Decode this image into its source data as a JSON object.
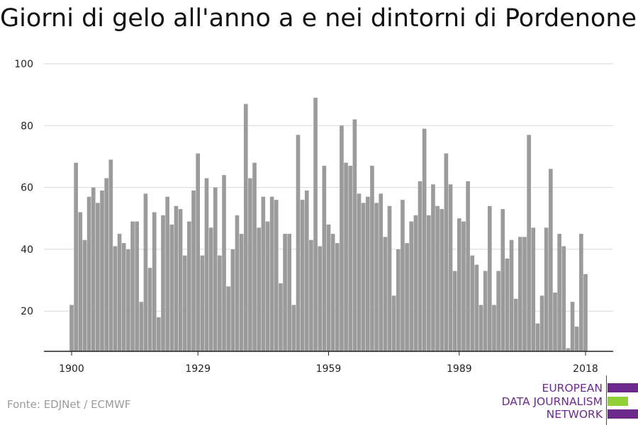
{
  "title": "Giorni di gelo all'anno a e nei dintorni di Pordenone",
  "source": "Fonte: EDJNet / ECMWF",
  "logo": {
    "line1": "EUROPEAN",
    "line2": "DATA JOURNALISM",
    "line3": "NETWORK",
    "colors": {
      "purple": "#6b2a8c",
      "green": "#8fd137"
    }
  },
  "chart_data": {
    "type": "bar",
    "ylim": [
      7,
      100
    ],
    "yticks": [
      20,
      40,
      60,
      80,
      100
    ],
    "xticks": [
      1900,
      1929,
      1959,
      1989,
      2018
    ],
    "grid": true,
    "bar_color": "#9b9b9b",
    "x": [
      1900,
      1901,
      1902,
      1903,
      1904,
      1905,
      1906,
      1907,
      1908,
      1909,
      1910,
      1911,
      1912,
      1913,
      1914,
      1915,
      1916,
      1917,
      1918,
      1919,
      1920,
      1921,
      1922,
      1923,
      1924,
      1925,
      1926,
      1927,
      1928,
      1929,
      1930,
      1931,
      1932,
      1933,
      1934,
      1935,
      1936,
      1937,
      1938,
      1939,
      1940,
      1941,
      1942,
      1943,
      1944,
      1945,
      1946,
      1947,
      1948,
      1949,
      1950,
      1951,
      1952,
      1953,
      1954,
      1955,
      1956,
      1957,
      1958,
      1959,
      1960,
      1961,
      1962,
      1963,
      1964,
      1965,
      1966,
      1967,
      1968,
      1969,
      1970,
      1971,
      1972,
      1973,
      1974,
      1975,
      1976,
      1977,
      1978,
      1979,
      1980,
      1981,
      1982,
      1983,
      1984,
      1985,
      1986,
      1987,
      1988,
      1989,
      1990,
      1991,
      1992,
      1993,
      1994,
      1995,
      1996,
      1997,
      1998,
      1999,
      2000,
      2001,
      2002,
      2003,
      2004,
      2005,
      2006,
      2007,
      2008,
      2009,
      2010,
      2011,
      2012,
      2013,
      2014,
      2015,
      2016,
      2017,
      2018
    ],
    "values": [
      22,
      68,
      52,
      43,
      57,
      60,
      55,
      59,
      63,
      69,
      41,
      45,
      42,
      40,
      49,
      49,
      23,
      58,
      34,
      52,
      18,
      51,
      57,
      48,
      54,
      53,
      38,
      49,
      59,
      71,
      38,
      63,
      47,
      60,
      38,
      64,
      28,
      40,
      51,
      45,
      87,
      63,
      68,
      47,
      57,
      49,
      57,
      56,
      29,
      45,
      45,
      22,
      77,
      56,
      59,
      43,
      89,
      41,
      67,
      48,
      45,
      42,
      80,
      68,
      67,
      82,
      58,
      55,
      57,
      67,
      55,
      58,
      44,
      54,
      25,
      40,
      56,
      42,
      49,
      51,
      62,
      79,
      51,
      61,
      54,
      53,
      71,
      61,
      33,
      50,
      49,
      62,
      38,
      35,
      22,
      33,
      54,
      22,
      33,
      53,
      37,
      43,
      24,
      44,
      44,
      77,
      47,
      16,
      25,
      47,
      66,
      26,
      45,
      41,
      8,
      23,
      15,
      45,
      32
    ]
  }
}
